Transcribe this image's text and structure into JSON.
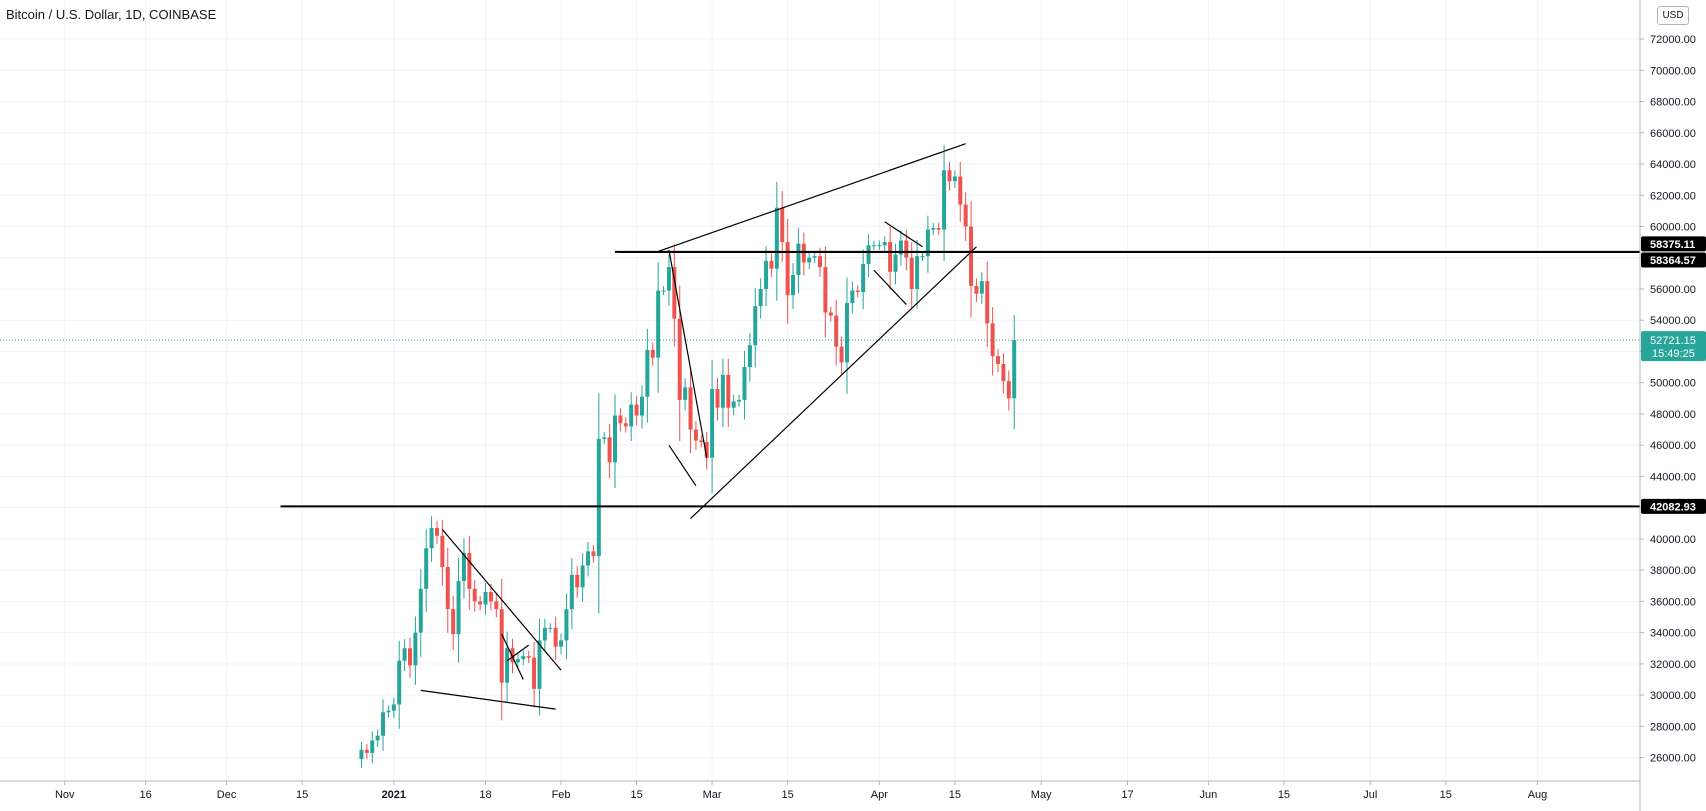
{
  "header": {
    "title": "Bitcoin / U.S. Dollar, 1D, COINBASE",
    "currency_button": "USD"
  },
  "colors": {
    "up": "#26a69a",
    "down": "#ef5350",
    "grid": "#f0f3fa",
    "axis_text": "#131722"
  },
  "chart_data": {
    "type": "candlestick",
    "title": "Bitcoin / U.S. Dollar, 1D, COINBASE",
    "x_ticks": [
      {
        "label": "Nov",
        "date": "2020-11-01"
      },
      {
        "label": "16",
        "date": "2020-11-16"
      },
      {
        "label": "Dec",
        "date": "2020-12-01"
      },
      {
        "label": "15",
        "date": "2020-12-15"
      },
      {
        "label": "2021",
        "date": "2021-01-01",
        "bold": true
      },
      {
        "label": "18",
        "date": "2021-01-18"
      },
      {
        "label": "Feb",
        "date": "2021-02-01"
      },
      {
        "label": "15",
        "date": "2021-02-15"
      },
      {
        "label": "Mar",
        "date": "2021-03-01"
      },
      {
        "label": "15",
        "date": "2021-03-15"
      },
      {
        "label": "Apr",
        "date": "2021-04-01"
      },
      {
        "label": "15",
        "date": "2021-04-15"
      },
      {
        "label": "May",
        "date": "2021-05-01"
      },
      {
        "label": "17",
        "date": "2021-05-17"
      },
      {
        "label": "Jun",
        "date": "2021-06-01"
      },
      {
        "label": "15",
        "date": "2021-06-15"
      },
      {
        "label": "Jul",
        "date": "2021-07-01"
      },
      {
        "label": "15",
        "date": "2021-07-15"
      },
      {
        "label": "Aug",
        "date": "2021-08-01"
      }
    ],
    "y_ticks": [
      "26000.00",
      "28000.00",
      "30000.00",
      "32000.00",
      "34000.00",
      "36000.00",
      "38000.00",
      "40000.00",
      "42000.00",
      "44000.00",
      "46000.00",
      "48000.00",
      "50000.00",
      "52000.00",
      "54000.00",
      "56000.00",
      "58000.00",
      "60000.00",
      "62000.00",
      "64000.00",
      "66000.00",
      "68000.00",
      "70000.00",
      "72000.00"
    ],
    "ylim": [
      24500,
      74500
    ],
    "xlim": [
      "2020-10-20",
      "2021-08-20"
    ],
    "close_series": [
      {
        "date": "2020-12-26",
        "close": 26500
      },
      {
        "date": "2020-12-27",
        "close": 26300
      },
      {
        "date": "2020-12-28",
        "close": 27100
      },
      {
        "date": "2020-12-29",
        "close": 27400
      },
      {
        "date": "2020-12-30",
        "close": 28900
      },
      {
        "date": "2020-12-31",
        "close": 29000
      },
      {
        "date": "2021-01-01",
        "close": 29400
      },
      {
        "date": "2021-01-02",
        "close": 32200
      },
      {
        "date": "2021-01-03",
        "close": 33000
      },
      {
        "date": "2021-01-04",
        "close": 31900
      },
      {
        "date": "2021-01-05",
        "close": 34000
      },
      {
        "date": "2021-01-06",
        "close": 36800
      },
      {
        "date": "2021-01-07",
        "close": 39400
      },
      {
        "date": "2021-01-08",
        "close": 40700
      },
      {
        "date": "2021-01-09",
        "close": 40200
      },
      {
        "date": "2021-01-10",
        "close": 38200
      },
      {
        "date": "2021-01-11",
        "close": 35500
      },
      {
        "date": "2021-01-12",
        "close": 33900
      },
      {
        "date": "2021-01-13",
        "close": 37300
      },
      {
        "date": "2021-01-14",
        "close": 39100
      },
      {
        "date": "2021-01-15",
        "close": 36800
      },
      {
        "date": "2021-01-16",
        "close": 36000
      },
      {
        "date": "2021-01-17",
        "close": 35800
      },
      {
        "date": "2021-01-18",
        "close": 36600
      },
      {
        "date": "2021-01-19",
        "close": 36000
      },
      {
        "date": "2021-01-20",
        "close": 35500
      },
      {
        "date": "2021-01-21",
        "close": 30800
      },
      {
        "date": "2021-01-22",
        "close": 33000
      },
      {
        "date": "2021-01-23",
        "close": 32100
      },
      {
        "date": "2021-01-24",
        "close": 32300
      },
      {
        "date": "2021-01-25",
        "close": 32500
      },
      {
        "date": "2021-01-26",
        "close": 32400
      },
      {
        "date": "2021-01-27",
        "close": 30400
      },
      {
        "date": "2021-01-28",
        "close": 33500
      },
      {
        "date": "2021-01-29",
        "close": 34300
      },
      {
        "date": "2021-01-30",
        "close": 34300
      },
      {
        "date": "2021-01-31",
        "close": 33100
      },
      {
        "date": "2021-02-01",
        "close": 33500
      },
      {
        "date": "2021-02-02",
        "close": 35500
      },
      {
        "date": "2021-02-03",
        "close": 37700
      },
      {
        "date": "2021-02-04",
        "close": 36900
      },
      {
        "date": "2021-02-05",
        "close": 38300
      },
      {
        "date": "2021-02-06",
        "close": 39200
      },
      {
        "date": "2021-02-07",
        "close": 38900
      },
      {
        "date": "2021-02-08",
        "close": 46400
      },
      {
        "date": "2021-02-09",
        "close": 46500
      },
      {
        "date": "2021-02-10",
        "close": 44900
      },
      {
        "date": "2021-02-11",
        "close": 47900
      },
      {
        "date": "2021-02-12",
        "close": 47400
      },
      {
        "date": "2021-02-13",
        "close": 47200
      },
      {
        "date": "2021-02-14",
        "close": 48600
      },
      {
        "date": "2021-02-15",
        "close": 47900
      },
      {
        "date": "2021-02-16",
        "close": 49100
      },
      {
        "date": "2021-02-17",
        "close": 52100
      },
      {
        "date": "2021-02-18",
        "close": 51600
      },
      {
        "date": "2021-02-19",
        "close": 55900
      },
      {
        "date": "2021-02-20",
        "close": 55900
      },
      {
        "date": "2021-02-21",
        "close": 57400
      },
      {
        "date": "2021-02-22",
        "close": 54100
      },
      {
        "date": "2021-02-23",
        "close": 48900
      },
      {
        "date": "2021-02-24",
        "close": 49700
      },
      {
        "date": "2021-02-25",
        "close": 47000
      },
      {
        "date": "2021-02-26",
        "close": 46300
      },
      {
        "date": "2021-02-27",
        "close": 46200
      },
      {
        "date": "2021-02-28",
        "close": 45200
      },
      {
        "date": "2021-03-01",
        "close": 49600
      },
      {
        "date": "2021-03-02",
        "close": 48400
      },
      {
        "date": "2021-03-03",
        "close": 50500
      },
      {
        "date": "2021-03-04",
        "close": 48400
      },
      {
        "date": "2021-03-05",
        "close": 48800
      },
      {
        "date": "2021-03-06",
        "close": 48900
      },
      {
        "date": "2021-03-07",
        "close": 51000
      },
      {
        "date": "2021-03-08",
        "close": 52400
      },
      {
        "date": "2021-03-09",
        "close": 54900
      },
      {
        "date": "2021-03-10",
        "close": 56000
      },
      {
        "date": "2021-03-11",
        "close": 57800
      },
      {
        "date": "2021-03-12",
        "close": 57300
      },
      {
        "date": "2021-03-13",
        "close": 61200
      },
      {
        "date": "2021-03-14",
        "close": 59000
      },
      {
        "date": "2021-03-15",
        "close": 55600
      },
      {
        "date": "2021-03-16",
        "close": 56900
      },
      {
        "date": "2021-03-17",
        "close": 58900
      },
      {
        "date": "2021-03-18",
        "close": 57700
      },
      {
        "date": "2021-03-19",
        "close": 58000
      },
      {
        "date": "2021-03-20",
        "close": 58100
      },
      {
        "date": "2021-03-21",
        "close": 57400
      },
      {
        "date": "2021-03-22",
        "close": 54500
      },
      {
        "date": "2021-03-23",
        "close": 54300
      },
      {
        "date": "2021-03-24",
        "close": 52300
      },
      {
        "date": "2021-03-25",
        "close": 51300
      },
      {
        "date": "2021-03-26",
        "close": 55100
      },
      {
        "date": "2021-03-27",
        "close": 55900
      },
      {
        "date": "2021-03-28",
        "close": 55800
      },
      {
        "date": "2021-03-29",
        "close": 57600
      },
      {
        "date": "2021-03-30",
        "close": 58800
      },
      {
        "date": "2021-03-31",
        "close": 58800
      },
      {
        "date": "2021-04-01",
        "close": 58800
      },
      {
        "date": "2021-04-02",
        "close": 59000
      },
      {
        "date": "2021-04-03",
        "close": 57100
      },
      {
        "date": "2021-04-04",
        "close": 58200
      },
      {
        "date": "2021-04-05",
        "close": 59100
      },
      {
        "date": "2021-04-06",
        "close": 58000
      },
      {
        "date": "2021-04-07",
        "close": 56000
      },
      {
        "date": "2021-04-08",
        "close": 58100
      },
      {
        "date": "2021-04-09",
        "close": 58100
      },
      {
        "date": "2021-04-10",
        "close": 59800
      },
      {
        "date": "2021-04-11",
        "close": 59900
      },
      {
        "date": "2021-04-12",
        "close": 59800
      },
      {
        "date": "2021-04-13",
        "close": 63600
      },
      {
        "date": "2021-04-14",
        "close": 62900
      },
      {
        "date": "2021-04-15",
        "close": 63200
      },
      {
        "date": "2021-04-16",
        "close": 61400
      },
      {
        "date": "2021-04-17",
        "close": 60000
      },
      {
        "date": "2021-04-18",
        "close": 56200
      },
      {
        "date": "2021-04-19",
        "close": 55700
      },
      {
        "date": "2021-04-20",
        "close": 56500
      },
      {
        "date": "2021-04-21",
        "close": 53800
      },
      {
        "date": "2021-04-22",
        "close": 51700
      },
      {
        "date": "2021-04-23",
        "close": 51200
      },
      {
        "date": "2021-04-24",
        "close": 50100
      },
      {
        "date": "2021-04-25",
        "close": 49000
      },
      {
        "date": "2021-04-26",
        "close": 52721.15
      }
    ],
    "horizontal_levels": [
      {
        "price": 58375.11,
        "label": "58375.11"
      },
      {
        "price": 58364.57,
        "label": "58364.57"
      },
      {
        "price": 42082.93,
        "label": "42082.93"
      }
    ],
    "last_price": {
      "value": 52721.15,
      "label": "52721.15",
      "countdown": "15:49:25"
    }
  }
}
